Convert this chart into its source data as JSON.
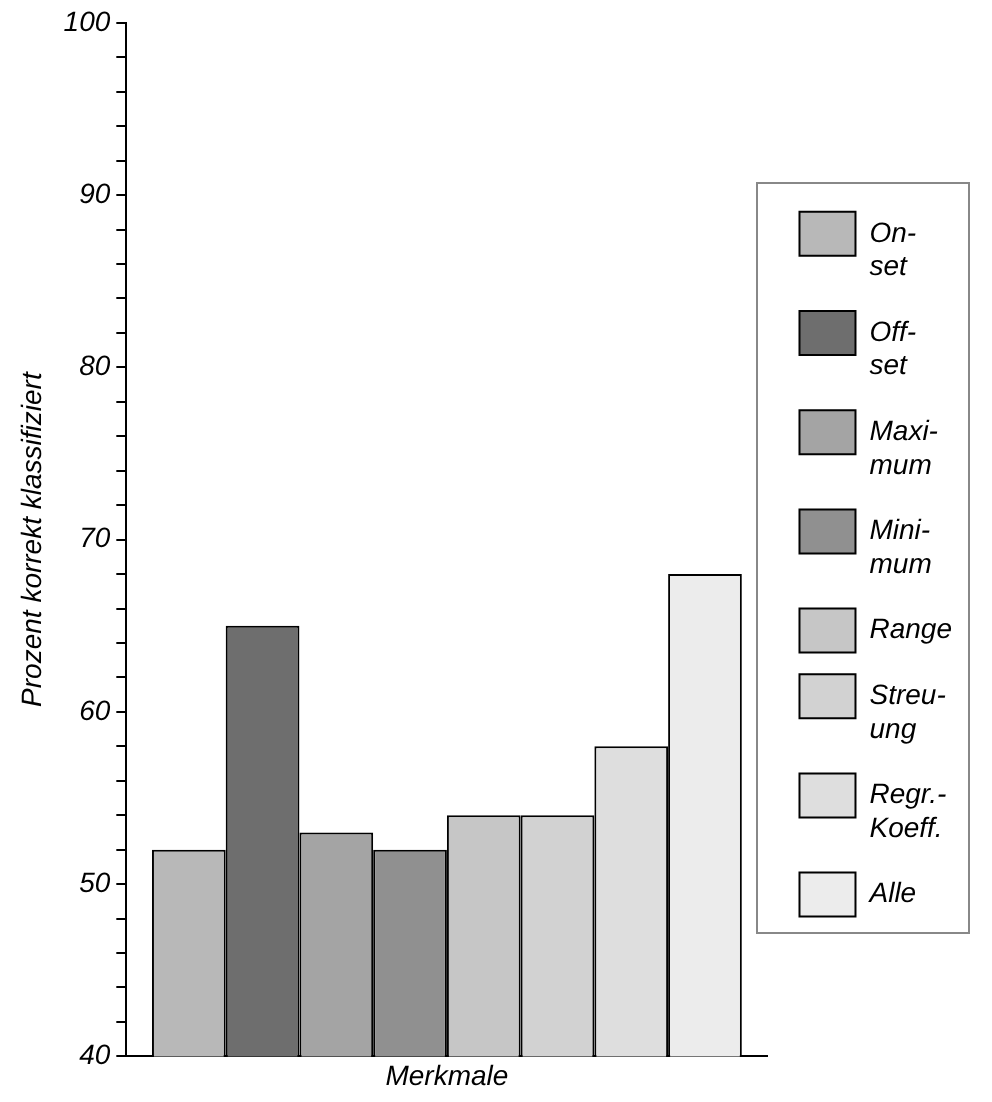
{
  "chart_data": {
    "type": "bar",
    "xlabel": "Merkmale",
    "ylabel": "Prozent korrekt klassifiziert",
    "categories": [
      null
    ],
    "series": [
      {
        "name": "On-\nset",
        "color": "#b8b8b8",
        "values": [
          52
        ]
      },
      {
        "name": "Off-\nset",
        "color": "#6e6e6e",
        "values": [
          65
        ]
      },
      {
        "name": "Maxi-\nmum",
        "color": "#a4a4a4",
        "values": [
          53
        ]
      },
      {
        "name": "Mini-\nmum",
        "color": "#909090",
        "values": [
          52
        ]
      },
      {
        "name": "Range",
        "color": "#c6c6c6",
        "values": [
          54
        ]
      },
      {
        "name": "Streu-\nung",
        "color": "#d2d2d2",
        "values": [
          54
        ]
      },
      {
        "name": "Regr.-\nKoeff.",
        "color": "#dedede",
        "values": [
          58
        ]
      },
      {
        "name": "Alle",
        "color": "#ececec",
        "values": [
          68
        ]
      }
    ],
    "ylim": [
      40,
      100
    ],
    "yticks": [
      40,
      {
        "value": 42,
        "label": null
      },
      {
        "value": 44,
        "label": null
      },
      {
        "value": 46,
        "label": null
      },
      {
        "value": 48,
        "label": null
      },
      50,
      {
        "value": 52,
        "label": null
      },
      {
        "value": 54,
        "label": null
      },
      {
        "value": 56,
        "label": null
      },
      {
        "value": 58,
        "label": null
      },
      60,
      {
        "value": 62,
        "label": null
      },
      {
        "value": 64,
        "label": null
      },
      {
        "value": 66,
        "label": null
      },
      {
        "value": 68,
        "label": null
      },
      70,
      {
        "value": 72,
        "label": null
      },
      {
        "value": 74,
        "label": null
      },
      {
        "value": 76,
        "label": null
      },
      {
        "value": 78,
        "label": null
      },
      80,
      {
        "value": 82,
        "label": null
      },
      {
        "value": 84,
        "label": null
      },
      {
        "value": 86,
        "label": null
      },
      {
        "value": 88,
        "label": null
      },
      90,
      {
        "value": 92,
        "label": null
      },
      {
        "value": 94,
        "label": null
      },
      {
        "value": 96,
        "label": null
      },
      {
        "value": 98,
        "label": null
      },
      100
    ],
    "grid": false,
    "legend": "right"
  }
}
